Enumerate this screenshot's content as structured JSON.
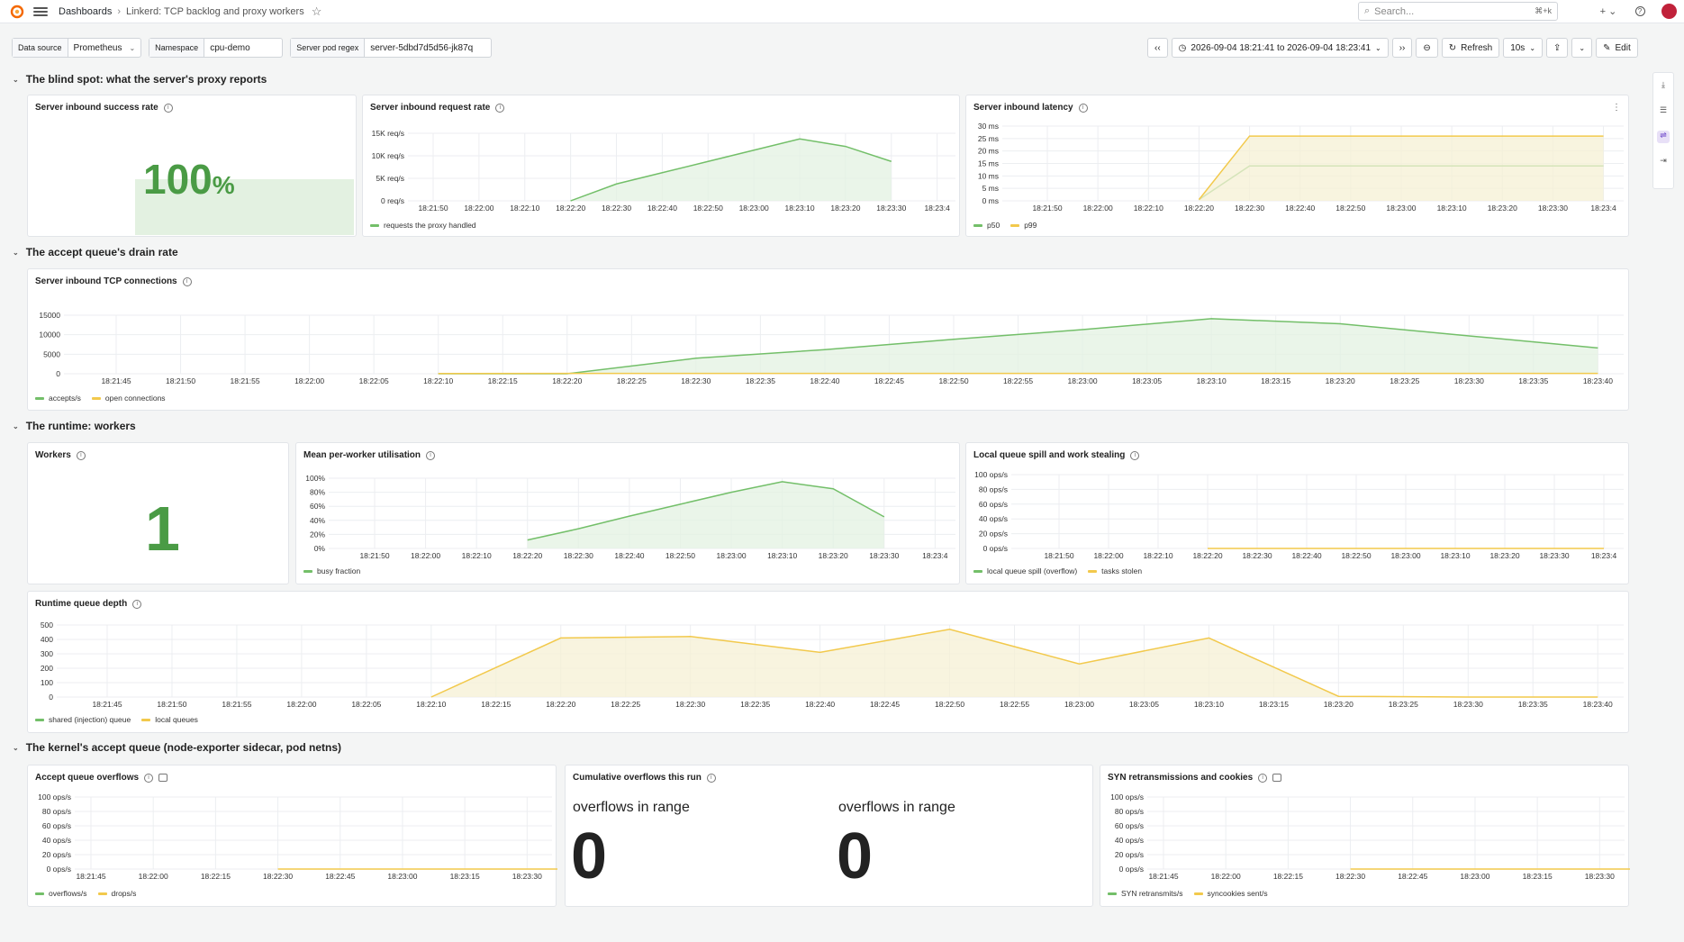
{
  "topbar": {
    "breadcrumb_root": "Dashboards",
    "breadcrumb_sep": "›",
    "dashboard_title": "Linkerd: TCP backlog and proxy workers",
    "search_placeholder": "Search...",
    "search_kbd": "⌘+k",
    "add_label": "+ ⌄"
  },
  "variables": [
    {
      "label": "Data source",
      "value": "Prometheus",
      "has_dropdown": true
    },
    {
      "label": "Namespace",
      "value": "cpu-demo",
      "has_dropdown": false
    },
    {
      "label": "Server pod regex",
      "value": "server-5dbd7d5d56-jk87q",
      "has_dropdown": false
    }
  ],
  "timebar": {
    "back": "‹‹",
    "range": "2026-09-04 18:21:41 to 2026-09-04 18:23:41",
    "forward": "››",
    "refresh": "Refresh",
    "interval": "10s",
    "edit": "Edit"
  },
  "rows": [
    {
      "title": "The blind spot: what the server's proxy reports"
    },
    {
      "title": "The accept queue's drain rate"
    },
    {
      "title": "The runtime: workers"
    },
    {
      "title": "The kernel's accept queue (node-exporter sidecar, pod netns)"
    }
  ],
  "colors": {
    "green": "#73bf69",
    "green_fill": "#e3f1e1",
    "yellow": "#f2c94c",
    "yellow_fill": "#f5f0d4",
    "stat_green": "#4a9b45"
  },
  "panels": {
    "success_rate": {
      "title": "Server inbound success rate",
      "value": "100",
      "unit": "%"
    },
    "workers": {
      "title": "Workers",
      "value": "1"
    },
    "cumulative": {
      "title": "Cumulative overflows this run",
      "items": [
        {
          "label": "overflows in range",
          "value": "0"
        },
        {
          "label": "overflows in range",
          "value": "0"
        }
      ]
    }
  },
  "chart_data": [
    {
      "id": "request_rate",
      "type": "area",
      "title": "Server inbound request rate",
      "x": [
        "18:21:50",
        "18:22:00",
        "18:22:10",
        "18:22:20",
        "18:22:30",
        "18:22:40",
        "18:22:50",
        "18:23:00",
        "18:23:10",
        "18:23:20",
        "18:23:30",
        "18:23:4"
      ],
      "yticks": [
        "15K req/s",
        "10K req/s",
        "5K req/s",
        "0 req/s"
      ],
      "ylim": [
        0,
        18000
      ],
      "series": [
        {
          "name": "requests the proxy handled",
          "color": "green",
          "points": [
            [
              3,
              0
            ],
            [
              4,
              4500
            ],
            [
              5,
              7500
            ],
            [
              6,
              10500
            ],
            [
              7,
              13500
            ],
            [
              8,
              16500
            ],
            [
              9,
              14500
            ],
            [
              10,
              10500
            ]
          ]
        }
      ]
    },
    {
      "id": "latency",
      "type": "line",
      "title": "Server inbound latency",
      "x": [
        "18:21:50",
        "18:22:00",
        "18:22:10",
        "18:22:20",
        "18:22:30",
        "18:22:40",
        "18:22:50",
        "18:23:00",
        "18:23:10",
        "18:23:20",
        "18:23:30",
        "18:23:4"
      ],
      "yticks": [
        "30 ms",
        "25 ms",
        "20 ms",
        "15 ms",
        "10 ms",
        "5 ms",
        "0 ms"
      ],
      "ylim": [
        0,
        30
      ],
      "series": [
        {
          "name": "p50",
          "color": "green",
          "points": [
            [
              3,
              0.5
            ],
            [
              4,
              14
            ],
            [
              5,
              14
            ],
            [
              6,
              14
            ],
            [
              7,
              14
            ],
            [
              8,
              14
            ],
            [
              9,
              14
            ],
            [
              10,
              14
            ],
            [
              11,
              14
            ]
          ]
        },
        {
          "name": "p99",
          "color": "yellow",
          "points": [
            [
              3,
              0.5
            ],
            [
              4,
              26
            ],
            [
              5,
              26
            ],
            [
              6,
              26
            ],
            [
              7,
              26
            ],
            [
              8,
              26
            ],
            [
              9,
              26
            ],
            [
              10,
              26
            ],
            [
              11,
              26
            ]
          ]
        }
      ]
    },
    {
      "id": "tcp_conn",
      "type": "area",
      "title": "Server inbound TCP connections",
      "x": [
        "18:21:45",
        "18:21:50",
        "18:21:55",
        "18:22:00",
        "18:22:05",
        "18:22:10",
        "18:22:15",
        "18:22:20",
        "18:22:25",
        "18:22:30",
        "18:22:35",
        "18:22:40",
        "18:22:45",
        "18:22:50",
        "18:22:55",
        "18:23:00",
        "18:23:05",
        "18:23:10",
        "18:23:15",
        "18:23:20",
        "18:23:25",
        "18:23:30",
        "18:23:35",
        "18:23:40"
      ],
      "yticks": [
        "15000",
        "10000",
        "5000",
        "0"
      ],
      "ylim": [
        0,
        17000
      ],
      "series": [
        {
          "name": "accepts/s",
          "color": "green",
          "points": [
            [
              5,
              0
            ],
            [
              7,
              0
            ],
            [
              9,
              4500
            ],
            [
              11,
              7000
            ],
            [
              13,
              10000
            ],
            [
              15,
              12800
            ],
            [
              17,
              16000
            ],
            [
              19,
              14500
            ],
            [
              21,
              11000
            ],
            [
              23,
              7500
            ]
          ]
        },
        {
          "name": "open connections",
          "color": "yellow",
          "points": [
            [
              5,
              50
            ],
            [
              7,
              100
            ],
            [
              9,
              100
            ],
            [
              11,
              100
            ],
            [
              13,
              100
            ],
            [
              15,
              100
            ],
            [
              17,
              100
            ],
            [
              19,
              100
            ],
            [
              21,
              100
            ],
            [
              23,
              100
            ]
          ]
        }
      ]
    },
    {
      "id": "utilisation",
      "type": "area",
      "title": "Mean per-worker utilisation",
      "x": [
        "18:21:50",
        "18:22:00",
        "18:22:10",
        "18:22:20",
        "18:22:30",
        "18:22:40",
        "18:22:50",
        "18:23:00",
        "18:23:10",
        "18:23:20",
        "18:23:30",
        "18:23:4"
      ],
      "yticks": [
        "100%",
        "80%",
        "60%",
        "40%",
        "20%",
        "0%"
      ],
      "ylim": [
        0,
        100
      ],
      "series": [
        {
          "name": "busy fraction",
          "color": "green",
          "points": [
            [
              3,
              12
            ],
            [
              4,
              28
            ],
            [
              5,
              46
            ],
            [
              6,
              63
            ],
            [
              7,
              80
            ],
            [
              8,
              95
            ],
            [
              9,
              85
            ],
            [
              10,
              45
            ]
          ]
        }
      ]
    },
    {
      "id": "spill",
      "type": "line",
      "title": "Local queue spill and work stealing",
      "x": [
        "18:21:50",
        "18:22:00",
        "18:22:10",
        "18:22:20",
        "18:22:30",
        "18:22:40",
        "18:22:50",
        "18:23:00",
        "18:23:10",
        "18:23:20",
        "18:23:30",
        "18:23:4"
      ],
      "yticks": [
        "100 ops/s",
        "80 ops/s",
        "60 ops/s",
        "40 ops/s",
        "20 ops/s",
        "0 ops/s"
      ],
      "ylim": [
        0,
        100
      ],
      "series": [
        {
          "name": "local queue spill (overflow)",
          "color": "green",
          "points": []
        },
        {
          "name": "tasks stolen",
          "color": "yellow",
          "points": [
            [
              3,
              0
            ],
            [
              4,
              0
            ],
            [
              5,
              0
            ],
            [
              6,
              0
            ],
            [
              7,
              0
            ],
            [
              8,
              0
            ],
            [
              9,
              0
            ],
            [
              10,
              0
            ],
            [
              11,
              0
            ]
          ]
        }
      ]
    },
    {
      "id": "queue_depth",
      "type": "area",
      "title": "Runtime queue depth",
      "x": [
        "18:21:45",
        "18:21:50",
        "18:21:55",
        "18:22:00",
        "18:22:05",
        "18:22:10",
        "18:22:15",
        "18:22:20",
        "18:22:25",
        "18:22:30",
        "18:22:35",
        "18:22:40",
        "18:22:45",
        "18:22:50",
        "18:22:55",
        "18:23:00",
        "18:23:05",
        "18:23:10",
        "18:23:15",
        "18:23:20",
        "18:23:25",
        "18:23:30",
        "18:23:35",
        "18:23:40"
      ],
      "yticks": [
        "500",
        "400",
        "300",
        "200",
        "100",
        "0"
      ],
      "ylim": [
        0,
        500
      ],
      "series": [
        {
          "name": "shared (injection) queue",
          "color": "green",
          "points": []
        },
        {
          "name": "local queues",
          "color": "yellow",
          "points": [
            [
              5,
              0
            ],
            [
              7,
              410
            ],
            [
              9,
              420
            ],
            [
              11,
              310
            ],
            [
              13,
              470
            ],
            [
              15,
              230
            ],
            [
              17,
              410
            ],
            [
              19,
              5
            ],
            [
              21,
              0
            ],
            [
              23,
              0
            ]
          ]
        }
      ]
    },
    {
      "id": "overflows",
      "type": "line",
      "title": "Accept queue overflows",
      "x": [
        "18:21:45",
        "18:22:00",
        "18:22:15",
        "18:22:30",
        "18:22:45",
        "18:23:00",
        "18:23:15",
        "18:23:30"
      ],
      "yticks": [
        "100 ops/s",
        "80 ops/s",
        "60 ops/s",
        "40 ops/s",
        "20 ops/s",
        "0 ops/s"
      ],
      "ylim": [
        0,
        100
      ],
      "series": [
        {
          "name": "overflows/s",
          "color": "green",
          "points": []
        },
        {
          "name": "drops/s",
          "color": "yellow",
          "points": [
            [
              3,
              0
            ],
            [
              4,
              0
            ],
            [
              5,
              0
            ],
            [
              6,
              0
            ],
            [
              7,
              0
            ],
            [
              7.6,
              0
            ]
          ]
        }
      ]
    },
    {
      "id": "syn",
      "type": "line",
      "title": "SYN retransmissions and cookies",
      "x": [
        "18:21:45",
        "18:22:00",
        "18:22:15",
        "18:22:30",
        "18:22:45",
        "18:23:00",
        "18:23:15",
        "18:23:30"
      ],
      "yticks": [
        "100 ops/s",
        "80 ops/s",
        "60 ops/s",
        "40 ops/s",
        "20 ops/s",
        "0 ops/s"
      ],
      "ylim": [
        0,
        100
      ],
      "series": [
        {
          "name": "SYN retransmits/s",
          "color": "green",
          "points": []
        },
        {
          "name": "syncookies sent/s",
          "color": "yellow",
          "points": [
            [
              3,
              0
            ],
            [
              4,
              0
            ],
            [
              5,
              0
            ],
            [
              6,
              0
            ],
            [
              7,
              0
            ],
            [
              7.6,
              0
            ]
          ]
        }
      ]
    }
  ]
}
